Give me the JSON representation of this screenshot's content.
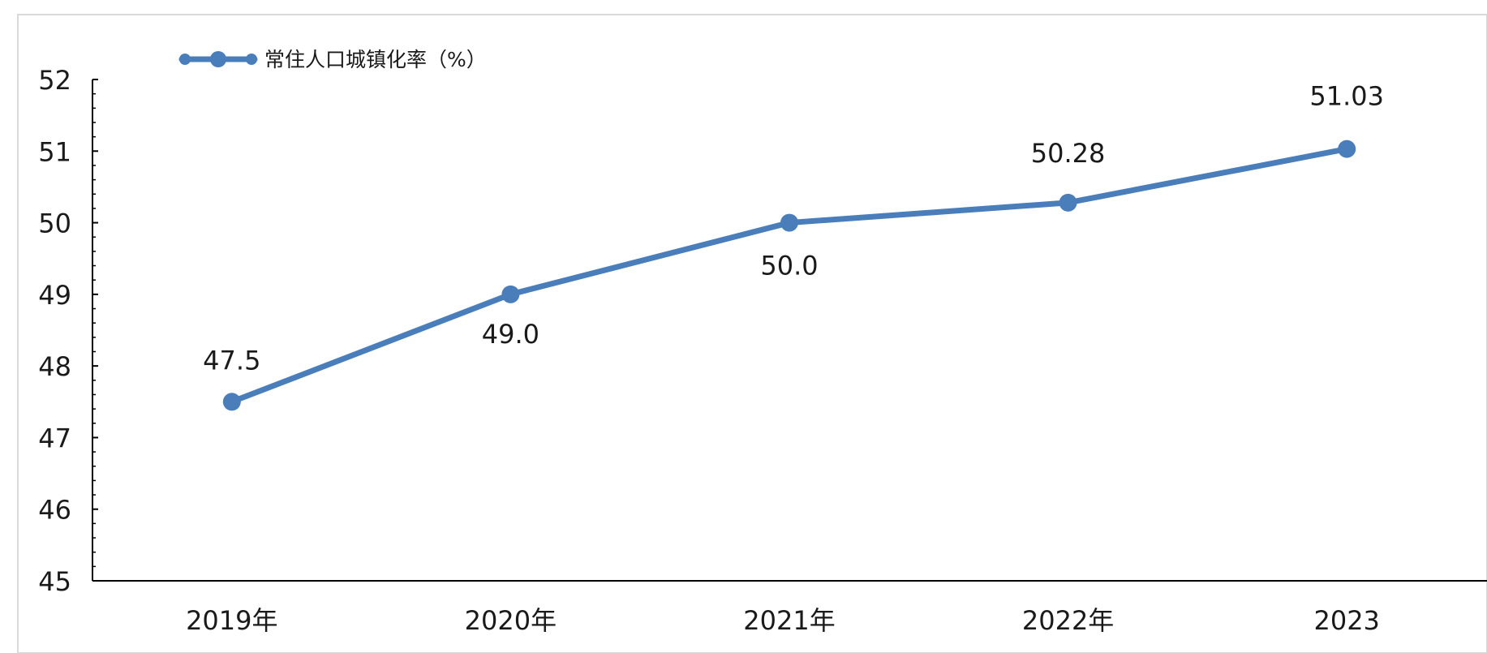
{
  "chart_data": {
    "type": "line",
    "categories": [
      "2019年",
      "2020年",
      "2021年",
      "2022年",
      "2023"
    ],
    "series": [
      {
        "name": "常住人口城镇化率（%）",
        "values": [
          47.5,
          49.0,
          50.0,
          50.28,
          51.03
        ],
        "data_labels": [
          "47.5",
          "49.0",
          "50.0",
          "50.28",
          "51.03"
        ],
        "color": "#4a7ebb"
      }
    ],
    "title": "",
    "xlabel": "",
    "ylabel": "",
    "ylim": [
      45,
      52
    ],
    "yticks": [
      "45",
      "46",
      "47",
      "48",
      "49",
      "50",
      "51",
      "52"
    ],
    "grid": false,
    "legend_position": "top-left"
  }
}
